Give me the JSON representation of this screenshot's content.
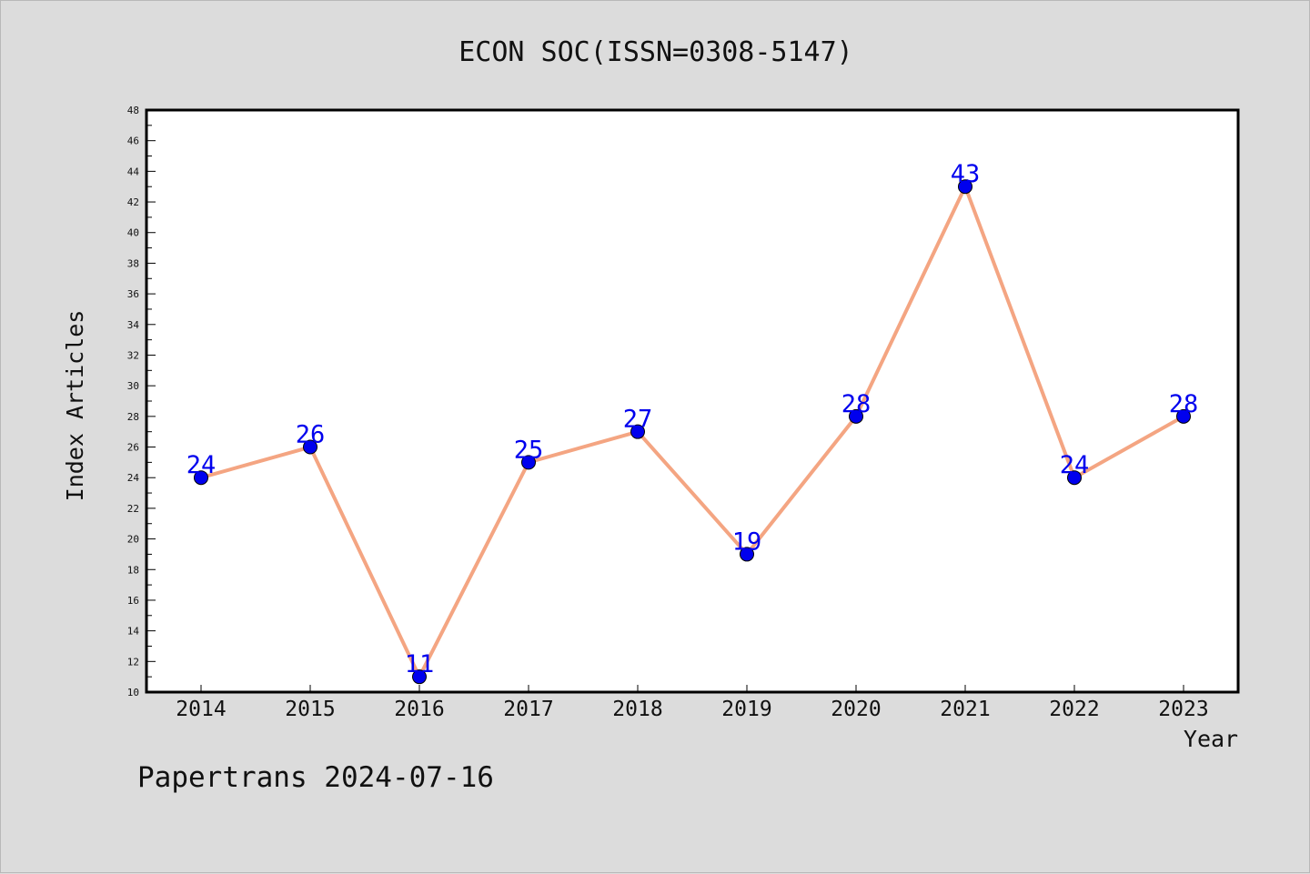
{
  "chart_data": {
    "type": "line",
    "title": "ECON SOC(ISSN=0308-5147)",
    "xlabel": "Year",
    "ylabel": "Index Articles",
    "categories": [
      "2014",
      "2015",
      "2016",
      "2017",
      "2018",
      "2019",
      "2020",
      "2021",
      "2022",
      "2023"
    ],
    "series": [
      {
        "values": [
          24,
          26,
          11,
          25,
          27,
          19,
          28,
          43,
          24,
          28
        ]
      }
    ],
    "data_labels": [
      "24",
      "26",
      "11",
      "25",
      "27",
      "19",
      "28",
      "43",
      "24",
      "28"
    ],
    "ylim": [
      10,
      48
    ],
    "y_ticks": [
      "10",
      "12",
      "14",
      "16",
      "18",
      "20",
      "22",
      "24",
      "26",
      "28",
      "30",
      "32",
      "34",
      "36",
      "38",
      "40",
      "42",
      "44",
      "46",
      "48"
    ],
    "line_color": "#f4a582",
    "marker_color": "#0000ee",
    "grid": false,
    "legend": "none"
  },
  "footer": "Papertrans 2024-07-16"
}
